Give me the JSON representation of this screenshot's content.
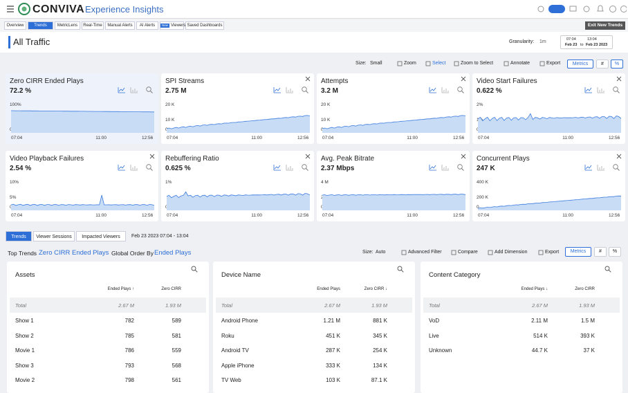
{
  "topbar": {
    "brand": "CONVIVA",
    "product": "Experience Insights"
  },
  "tabs": [
    "Overview",
    "Trends",
    "MetricLens",
    "Real-Time",
    "Manual Alerts",
    "AI Alerts",
    "Viewers",
    "Saved Dashboards"
  ],
  "new_badge": "New",
  "exit_button": "Exit New Trends",
  "page_title": "All Traffic",
  "granularity": {
    "label": "Granularity:",
    "value": "1m"
  },
  "date_range": {
    "from_time": "07:04",
    "from_date": "Feb 23",
    "to": "to",
    "to_time": "13:04",
    "to_date": "Feb 23 2023"
  },
  "toolbar": {
    "size_label": "Size:",
    "size_value": "Small",
    "items": [
      "Zoom",
      "Select",
      "Zoom to Select",
      "Annotate",
      "Export"
    ],
    "metrics": "Metrics",
    "hash": "#",
    "percent": "%"
  },
  "cards": [
    {
      "title": "Zero CIRR Ended Plays",
      "value": "72.2 %",
      "yticks": [
        "100%",
        "0%"
      ],
      "xticks": [
        "07:04",
        "11:00",
        "12:56"
      ]
    },
    {
      "title": "SPI Streams",
      "value": "2.75 M",
      "yticks": [
        "20 K",
        "10 K",
        "0"
      ],
      "xticks": [
        "07:04",
        "11:00",
        "12:56"
      ]
    },
    {
      "title": "Attempts",
      "value": "3.2 M",
      "yticks": [
        "20 K",
        "10 K",
        "0"
      ],
      "xticks": [
        "07:04",
        "11:00",
        "12:56"
      ]
    },
    {
      "title": "Video Start Failures",
      "value": "0.622 %",
      "yticks": [
        "2%",
        "1%",
        "0%"
      ],
      "xticks": [
        "07:04",
        "11:00",
        "12:56"
      ]
    },
    {
      "title": "Video Playback Failures",
      "value": "2.54 %",
      "yticks": [
        "10%",
        "5%",
        "0%"
      ],
      "xticks": [
        "07:04",
        "11:00",
        "12:56"
      ]
    },
    {
      "title": "Rebuffering Ratio",
      "value": "0.625 %",
      "yticks": [
        "1%",
        "0%"
      ],
      "xticks": [
        "07:04",
        "11:00",
        "12:56"
      ]
    },
    {
      "title": "Avg. Peak Bitrate",
      "value": "2.37 Mbps",
      "yticks": [
        "4 M",
        "2 M",
        "0"
      ],
      "xticks": [
        "07:04",
        "11:00",
        "12:56"
      ]
    },
    {
      "title": "Concurrent Plays",
      "value": "247 K",
      "yticks": [
        "400 K",
        "200 K",
        "0"
      ],
      "xticks": [
        "07:04",
        "11:00",
        "12:56"
      ]
    }
  ],
  "bottom_tabs": [
    "Trends",
    "Viewer Sessions",
    "Impacted Viewers"
  ],
  "bottom_date": "Feb 23 2023 07:04 - 13:04",
  "trends_bar": {
    "top_trends": "Top Trends",
    "metric": "Zero CIRR Ended Plays",
    "order_label": "Global Order By",
    "order_value": "Ended Plays",
    "size_label": "Size:",
    "size_value": "Auto",
    "items": [
      "Advanced Filter",
      "Compare",
      "Add Dimension",
      "Export"
    ],
    "metrics": "Metrics",
    "hash": "#",
    "percent": "%"
  },
  "tables": [
    {
      "title": "Assets",
      "columns": [
        "Ended Plays ↑",
        "Zero CIRR"
      ],
      "total": [
        "Total",
        "2.67 M",
        "1.93 M"
      ],
      "rows": [
        [
          "Show 1",
          "782",
          "589"
        ],
        [
          "Show 2",
          "785",
          "581"
        ],
        [
          "Movie 1",
          "786",
          "559"
        ],
        [
          "Show 3",
          "793",
          "568"
        ],
        [
          "Movie 2",
          "798",
          "561"
        ]
      ]
    },
    {
      "title": "Device Name",
      "columns": [
        "Ended Plays",
        "Zero CIRR ↓"
      ],
      "total": [
        "Total",
        "2.67 M",
        "1.93 M"
      ],
      "rows": [
        [
          "Android Phone",
          "1.21 M",
          "881 K"
        ],
        [
          "Roku",
          "451 K",
          "345 K"
        ],
        [
          "Android TV",
          "287 K",
          "254 K"
        ],
        [
          "Apple iPhone",
          "333 K",
          "134 K"
        ],
        [
          "TV Web",
          "103 K",
          "87.1 K"
        ]
      ]
    },
    {
      "title": "Content Category",
      "columns": [
        "Ended Plays ↓",
        "Zero CIRR"
      ],
      "total": [
        "Total",
        "2.67 M",
        "1.93 M"
      ],
      "rows": [
        [
          "VoD",
          "2.11 M",
          "1.5 M"
        ],
        [
          "Live",
          "514 K",
          "393 K"
        ],
        [
          "Unknown",
          "44.7 K",
          "37 K"
        ]
      ]
    }
  ]
}
